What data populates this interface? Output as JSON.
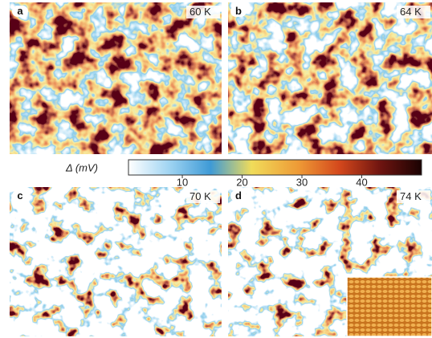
{
  "panels": [
    {
      "label": "a",
      "temperature": "60 K"
    },
    {
      "label": "b",
      "temperature": "64 K"
    },
    {
      "label": "c",
      "temperature": "70 K"
    },
    {
      "label": "d",
      "temperature": "74 K"
    }
  ],
  "colorbar": {
    "label": "Δ (mV)",
    "lim": [
      1,
      50
    ],
    "ticks": [
      10,
      20,
      30,
      40
    ]
  }
}
